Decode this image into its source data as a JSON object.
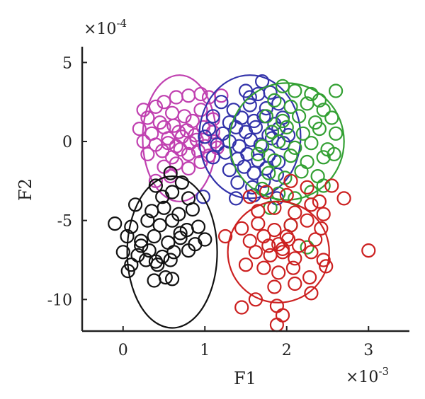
{
  "chart_data": {
    "type": "scatter",
    "xlabel": "F1",
    "ylabel": "F2",
    "x_exponent_label": "×10",
    "x_exponent_power": "-3",
    "y_exponent_label": "×10",
    "y_exponent_power": "-4",
    "xlim": [
      -0.5,
      3.5
    ],
    "ylim": [
      -12,
      6
    ],
    "x_ticks": [
      0,
      1,
      2,
      3
    ],
    "x_tick_labels": [
      "0",
      "1",
      "2",
      "3"
    ],
    "y_ticks": [
      5,
      0,
      -5,
      -10
    ],
    "y_tick_labels": [
      "5",
      "0",
      "-5",
      "-10"
    ],
    "grid": false,
    "series": [
      {
        "color": "#c040b0",
        "ellipse": {
          "cx": 0.69,
          "cy": 0.2,
          "rx": 0.45,
          "ry": 4.0
        },
        "points": [
          [
            0.25,
            2.0
          ],
          [
            0.4,
            2.2
          ],
          [
            0.5,
            2.5
          ],
          [
            0.65,
            2.8
          ],
          [
            0.8,
            2.9
          ],
          [
            0.95,
            3.0
          ],
          [
            1.05,
            2.8
          ],
          [
            1.2,
            2.9
          ],
          [
            0.3,
            1.5
          ],
          [
            0.45,
            1.2
          ],
          [
            0.6,
            1.8
          ],
          [
            0.75,
            1.6
          ],
          [
            0.85,
            1.3
          ],
          [
            0.95,
            2.0
          ],
          [
            1.1,
            1.4
          ],
          [
            0.2,
            0.8
          ],
          [
            0.35,
            0.5
          ],
          [
            0.5,
            0.9
          ],
          [
            0.62,
            1.0
          ],
          [
            0.78,
            0.7
          ],
          [
            0.88,
            0.4
          ],
          [
            0.98,
            0.9
          ],
          [
            1.1,
            0.6
          ],
          [
            0.25,
            0.0
          ],
          [
            0.4,
            -0.2
          ],
          [
            0.55,
            0.2
          ],
          [
            0.65,
            -0.3
          ],
          [
            0.72,
            0.3
          ],
          [
            0.82,
            -0.1
          ],
          [
            0.9,
            0.1
          ],
          [
            1.0,
            -0.3
          ],
          [
            1.12,
            0.0
          ],
          [
            0.3,
            -0.8
          ],
          [
            0.48,
            -0.6
          ],
          [
            0.6,
            -1.0
          ],
          [
            0.7,
            -0.5
          ],
          [
            0.8,
            -0.8
          ],
          [
            0.92,
            -0.6
          ],
          [
            1.05,
            -0.9
          ],
          [
            0.5,
            -1.6
          ],
          [
            0.65,
            -1.4
          ],
          [
            0.8,
            -1.7
          ],
          [
            0.95,
            -1.3
          ],
          [
            0.58,
            -2.2
          ],
          [
            0.4,
            -2.5
          ],
          [
            1.15,
            -0.4
          ],
          [
            0.55,
            -0.1
          ],
          [
            0.68,
            0.6
          ]
        ]
      },
      {
        "color": "#3333aa",
        "ellipse": {
          "cx": 1.55,
          "cy": 0.3,
          "rx": 0.62,
          "ry": 3.9
        },
        "points": [
          [
            1.7,
            3.8
          ],
          [
            1.5,
            3.2
          ],
          [
            1.65,
            3.0
          ],
          [
            1.8,
            3.1
          ],
          [
            1.2,
            2.5
          ],
          [
            1.35,
            2.0
          ],
          [
            1.55,
            2.3
          ],
          [
            1.75,
            2.1
          ],
          [
            1.9,
            2.4
          ],
          [
            1.1,
            1.6
          ],
          [
            1.3,
            1.2
          ],
          [
            1.45,
            1.5
          ],
          [
            1.6,
            1.3
          ],
          [
            1.72,
            1.6
          ],
          [
            1.85,
            1.1
          ],
          [
            1.95,
            1.5
          ],
          [
            1.05,
            0.8
          ],
          [
            1.22,
            0.5
          ],
          [
            1.38,
            0.9
          ],
          [
            1.5,
            0.6
          ],
          [
            1.62,
            0.9
          ],
          [
            1.78,
            0.4
          ],
          [
            1.9,
            0.8
          ],
          [
            2.02,
            0.4
          ],
          [
            1.15,
            -0.2
          ],
          [
            1.3,
            0.0
          ],
          [
            1.42,
            -0.3
          ],
          [
            1.56,
            0.1
          ],
          [
            1.68,
            -0.2
          ],
          [
            1.82,
            0.2
          ],
          [
            1.96,
            -0.1
          ],
          [
            1.1,
            -1.0
          ],
          [
            1.25,
            -0.7
          ],
          [
            1.4,
            -1.1
          ],
          [
            1.52,
            -0.8
          ],
          [
            1.65,
            -1.2
          ],
          [
            1.78,
            -0.9
          ],
          [
            1.9,
            -1.3
          ],
          [
            1.3,
            -1.8
          ],
          [
            1.48,
            -1.6
          ],
          [
            1.6,
            -2.0
          ],
          [
            1.75,
            -1.7
          ],
          [
            1.88,
            -2.1
          ],
          [
            1.4,
            -2.6
          ],
          [
            1.58,
            -2.9
          ],
          [
            1.72,
            -2.5
          ],
          [
            1.38,
            -3.6
          ],
          [
            1.6,
            -3.4
          ],
          [
            1.88,
            -3.6
          ],
          [
            0.98,
            -3.5
          ],
          [
            1.0,
            0.3
          ],
          [
            1.55,
            2.8
          ]
        ]
      },
      {
        "color": "#33a033",
        "ellipse": {
          "cx": 2.0,
          "cy": 0.0,
          "rx": 0.7,
          "ry": 3.7
        },
        "points": [
          [
            1.95,
            3.5
          ],
          [
            2.1,
            3.2
          ],
          [
            2.3,
            3.0
          ],
          [
            2.6,
            3.2
          ],
          [
            2.4,
            2.6
          ],
          [
            1.85,
            2.6
          ],
          [
            2.05,
            2.2
          ],
          [
            2.25,
            2.4
          ],
          [
            2.45,
            2.0
          ],
          [
            1.75,
            1.6
          ],
          [
            1.95,
            1.3
          ],
          [
            2.15,
            1.6
          ],
          [
            2.35,
            1.2
          ],
          [
            2.55,
            1.5
          ],
          [
            1.82,
            0.6
          ],
          [
            2.0,
            0.9
          ],
          [
            2.2,
            0.5
          ],
          [
            2.4,
            0.8
          ],
          [
            2.6,
            0.5
          ],
          [
            1.7,
            -0.3
          ],
          [
            1.9,
            0.0
          ],
          [
            2.1,
            -0.4
          ],
          [
            2.3,
            -0.1
          ],
          [
            2.5,
            -0.5
          ],
          [
            1.85,
            -1.2
          ],
          [
            2.05,
            -0.9
          ],
          [
            2.25,
            -1.3
          ],
          [
            2.45,
            -1.0
          ],
          [
            1.78,
            -2.0
          ],
          [
            1.98,
            -2.3
          ],
          [
            2.18,
            -1.9
          ],
          [
            2.38,
            -2.2
          ],
          [
            1.7,
            -3.0
          ],
          [
            1.9,
            -3.3
          ],
          [
            2.1,
            -3.6
          ],
          [
            2.3,
            -3.2
          ],
          [
            1.8,
            -4.2
          ],
          [
            2.05,
            -5.3
          ],
          [
            2.25,
            -6.7
          ],
          [
            2.45,
            -2.8
          ],
          [
            2.58,
            -0.8
          ],
          [
            1.65,
            -0.8
          ]
        ]
      },
      {
        "color": "#cc2020",
        "ellipse": {
          "cx": 1.9,
          "cy": -7.0,
          "rx": 0.62,
          "ry": 3.2
        },
        "points": [
          [
            2.05,
            -2.5
          ],
          [
            2.25,
            -2.9
          ],
          [
            2.55,
            -2.8
          ],
          [
            2.7,
            -3.6
          ],
          [
            1.55,
            -3.5
          ],
          [
            1.75,
            -3.2
          ],
          [
            2.0,
            -3.4
          ],
          [
            2.4,
            -3.8
          ],
          [
            1.65,
            -4.4
          ],
          [
            1.85,
            -4.2
          ],
          [
            2.1,
            -4.5
          ],
          [
            2.3,
            -4.0
          ],
          [
            2.45,
            -4.6
          ],
          [
            1.45,
            -5.5
          ],
          [
            1.65,
            -5.2
          ],
          [
            1.85,
            -5.6
          ],
          [
            2.05,
            -5.3
          ],
          [
            2.25,
            -5.0
          ],
          [
            2.42,
            -5.5
          ],
          [
            1.25,
            -6.0
          ],
          [
            1.55,
            -6.3
          ],
          [
            1.72,
            -6.0
          ],
          [
            1.9,
            -6.5
          ],
          [
            2.02,
            -6.2
          ],
          [
            2.15,
            -6.6
          ],
          [
            2.35,
            -6.2
          ],
          [
            1.62,
            -7.0
          ],
          [
            1.8,
            -7.2
          ],
          [
            1.95,
            -7.0
          ],
          [
            2.1,
            -7.4
          ],
          [
            2.3,
            -7.0
          ],
          [
            2.45,
            -7.5
          ],
          [
            1.5,
            -7.8
          ],
          [
            1.72,
            -8.0
          ],
          [
            1.9,
            -8.3
          ],
          [
            2.08,
            -8.0
          ],
          [
            2.28,
            -8.6
          ],
          [
            2.48,
            -7.9
          ],
          [
            1.85,
            -9.2
          ],
          [
            2.1,
            -9.0
          ],
          [
            2.3,
            -9.6
          ],
          [
            1.62,
            -10.0
          ],
          [
            1.88,
            -10.4
          ],
          [
            1.45,
            -10.5
          ],
          [
            1.95,
            -11.0
          ],
          [
            1.88,
            -11.6
          ],
          [
            3.0,
            -6.9
          ],
          [
            1.95,
            -6.8
          ],
          [
            2.0,
            -6.0
          ],
          [
            1.78,
            -6.6
          ]
        ]
      },
      {
        "color": "#111111",
        "ellipse": {
          "cx": 0.6,
          "cy": -7.0,
          "rx": 0.55,
          "ry": 4.8
        },
        "points": [
          [
            0.58,
            -2.0
          ],
          [
            0.72,
            -2.6
          ],
          [
            0.4,
            -2.8
          ],
          [
            0.6,
            -3.2
          ],
          [
            0.8,
            -3.6
          ],
          [
            0.48,
            -3.5
          ],
          [
            0.15,
            -4.0
          ],
          [
            0.35,
            -4.4
          ],
          [
            0.5,
            -4.2
          ],
          [
            0.68,
            -4.6
          ],
          [
            0.85,
            -4.3
          ],
          [
            -0.1,
            -5.2
          ],
          [
            0.1,
            -5.4
          ],
          [
            0.3,
            -5.0
          ],
          [
            0.45,
            -5.3
          ],
          [
            0.6,
            -5.0
          ],
          [
            0.78,
            -5.6
          ],
          [
            0.92,
            -5.4
          ],
          [
            0.05,
            -6.0
          ],
          [
            0.22,
            -6.3
          ],
          [
            0.38,
            -6.0
          ],
          [
            0.55,
            -6.4
          ],
          [
            0.7,
            -6.1
          ],
          [
            0.88,
            -6.5
          ],
          [
            1.0,
            -6.2
          ],
          [
            0.0,
            -7.0
          ],
          [
            0.18,
            -7.2
          ],
          [
            0.32,
            -6.9
          ],
          [
            0.48,
            -7.3
          ],
          [
            0.62,
            -7.0
          ],
          [
            0.8,
            -6.9
          ],
          [
            0.1,
            -7.8
          ],
          [
            0.28,
            -7.5
          ],
          [
            0.42,
            -7.8
          ],
          [
            0.58,
            -7.5
          ],
          [
            0.06,
            -8.2
          ],
          [
            0.38,
            -8.8
          ],
          [
            0.52,
            -8.6
          ],
          [
            0.6,
            -8.7
          ],
          [
            0.22,
            -6.6
          ],
          [
            0.4,
            -7.6
          ],
          [
            0.7,
            -5.8
          ]
        ]
      }
    ]
  }
}
